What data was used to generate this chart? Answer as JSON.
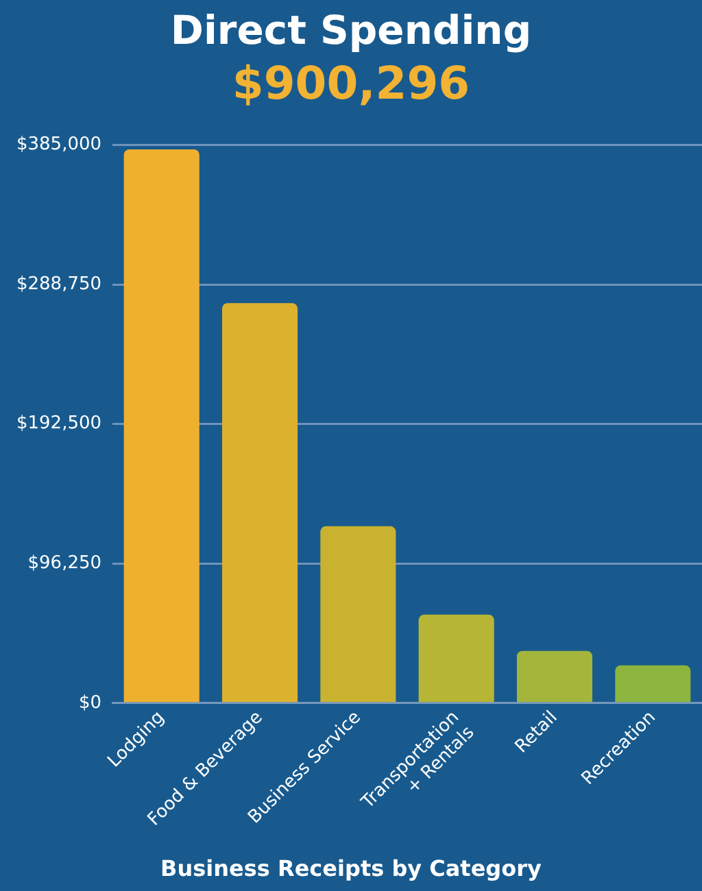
{
  "chart_data": {
    "type": "bar",
    "title": "Direct Spending",
    "subtitle": "$900,296",
    "xlabel": "Business Receipts by Category",
    "categories": [
      "Lodging",
      "Food & Beverage",
      "Business Service",
      "Transportation\n+ Rentals",
      "Retail",
      "Recreation"
    ],
    "values": [
      382000,
      276000,
      122000,
      61000,
      36000,
      26000
    ],
    "colors": [
      "#efb02e",
      "#dcb12e",
      "#c9b22f",
      "#b6b535",
      "#a3b53a",
      "#8db53d"
    ],
    "ylim": [
      0,
      385000
    ],
    "yticks": [
      {
        "value": 0,
        "label": "$0"
      },
      {
        "value": 96250,
        "label": "$96,250"
      },
      {
        "value": 192500,
        "label": "$192,500"
      },
      {
        "value": 288750,
        "label": "$288,750"
      },
      {
        "value": 385000,
        "label": "$385,000"
      }
    ],
    "grid": "y"
  }
}
